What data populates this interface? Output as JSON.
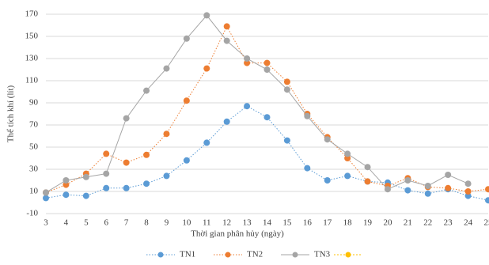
{
  "chart_data": {
    "type": "line",
    "x_label": "Thời gian phân hủy (ngày)",
    "y_label": "Thể tích khí (lít)",
    "x": [
      3,
      4,
      5,
      6,
      7,
      8,
      9,
      10,
      11,
      12,
      13,
      14,
      15,
      16,
      17,
      18,
      19,
      20,
      21,
      22,
      23,
      24,
      25
    ],
    "series": [
      {
        "name": "TN1",
        "color": "#5b9bd5",
        "line_style": "dotted",
        "values": [
          4,
          7,
          6,
          13,
          13,
          17,
          24,
          38,
          54,
          73,
          87,
          77,
          56,
          31,
          20,
          24,
          19,
          18,
          11,
          8,
          12,
          6,
          2
        ]
      },
      {
        "name": "TN2",
        "color": "#ed7d31",
        "line_style": "dotted",
        "values": [
          9,
          16,
          26,
          44,
          36,
          43,
          62,
          92,
          121,
          159,
          126,
          126,
          109,
          80,
          59,
          40,
          19,
          15,
          22,
          14,
          13,
          10,
          12
        ]
      },
      {
        "name": "TN3",
        "color": "#a5a5a5",
        "line_style": "solid",
        "values": [
          9,
          20,
          23,
          26,
          76,
          101,
          121,
          148,
          169,
          146,
          130,
          120,
          102,
          78,
          57,
          44,
          32,
          12,
          20,
          15,
          25,
          17,
          null
        ]
      }
    ],
    "xlim": [
      3,
      25
    ],
    "xticks": [
      3,
      4,
      5,
      6,
      7,
      8,
      9,
      10,
      11,
      12,
      13,
      14,
      15,
      16,
      17,
      18,
      19,
      20,
      21,
      22,
      23,
      24,
      25
    ],
    "ylim": [
      -10,
      170
    ],
    "yticks": [
      -10,
      10,
      30,
      50,
      70,
      90,
      110,
      130,
      150,
      170
    ],
    "grid": true,
    "legend": "bottom"
  }
}
